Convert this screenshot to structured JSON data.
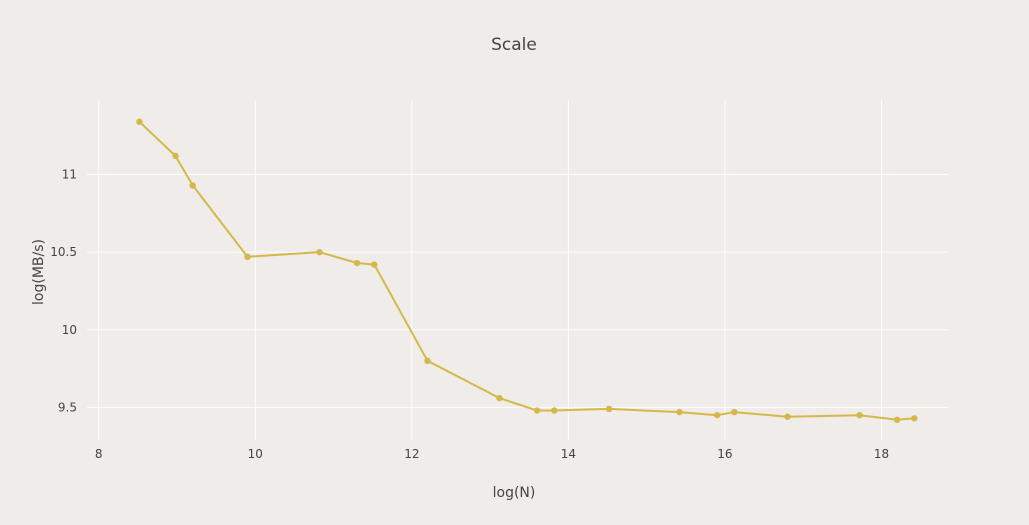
{
  "chart_data": {
    "type": "line",
    "title": "Scale",
    "xlabel": "log(N)",
    "ylabel": "log(MB/s)",
    "xlim": [
      7.85,
      18.85
    ],
    "ylim": [
      9.29,
      11.48
    ],
    "xticks": [
      8,
      10,
      12,
      14,
      16,
      18
    ],
    "yticks": [
      9.5,
      10,
      10.5,
      11
    ],
    "xtick_labels": [
      "8",
      "10",
      "12",
      "14",
      "16",
      "18"
    ],
    "ytick_labels": [
      "9.5",
      "10",
      "10.5",
      "11"
    ],
    "grid": true,
    "legend": false,
    "series": [
      {
        "color": "#d4b94a",
        "x": [
          8.52,
          8.98,
          9.2,
          9.9,
          10.82,
          11.3,
          11.52,
          12.2,
          13.12,
          13.6,
          13.82,
          14.52,
          15.42,
          15.9,
          16.12,
          16.8,
          17.72,
          18.2,
          18.42
        ],
        "y": [
          11.34,
          11.12,
          10.93,
          10.47,
          10.5,
          10.43,
          10.42,
          9.8,
          9.56,
          9.48,
          9.48,
          9.49,
          9.47,
          9.45,
          9.47,
          9.44,
          9.45,
          9.42,
          9.43
        ]
      }
    ]
  }
}
